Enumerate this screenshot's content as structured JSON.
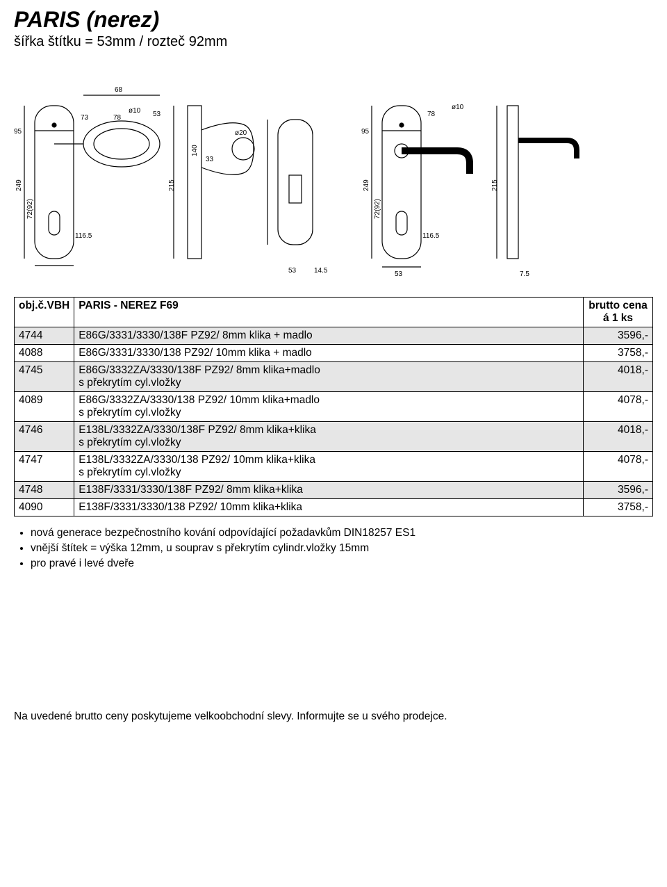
{
  "header": {
    "title": "PARIS (nerez)",
    "subtitle": "šířka štítku = 53mm / rozteč 92mm"
  },
  "diagrams": {
    "left": {
      "dims": [
        "68",
        "95",
        "73",
        "78",
        "ø10",
        "53",
        "249",
        "72(92)",
        "116.5",
        "33",
        "215",
        "140",
        "ø20",
        "53",
        "14.5"
      ]
    },
    "right": {
      "dims": [
        "95",
        "78",
        "ø10",
        "249",
        "72(92)",
        "116.5",
        "215",
        "53",
        "7.5"
      ]
    }
  },
  "table": {
    "header": {
      "col1": "obj.č.VBH",
      "col2": "PARIS  - NEREZ  F69",
      "col3": "brutto cena á 1 ks"
    },
    "rows": [
      {
        "shaded": true,
        "code": "4744",
        "desc": "E86G/3331/3330/138F    PZ92/ 8mm  klika + madlo",
        "price": "3596,-"
      },
      {
        "shaded": false,
        "code": "4088",
        "desc": "E86G/3331/3330/138    PZ92/ 10mm klika + madlo",
        "price": "3758,-"
      },
      {
        "shaded": true,
        "code": "4745",
        "desc": "E86G/3332ZA/3330/138F PZ92/ 8mm klika+madlo\ns překrytím cyl.vložky",
        "price": "4018,-"
      },
      {
        "shaded": false,
        "code": "4089",
        "desc": "E86G/3332ZA/3330/138   PZ92/ 10mm klika+madlo\ns překrytím  cyl.vložky",
        "price": "4078,-"
      },
      {
        "shaded": true,
        "code": "4746",
        "desc": "E138L/3332ZA/3330/138F PZ92/ 8mm klika+klika\ns překrytím   cyl.vložky",
        "price": "4018,-"
      },
      {
        "shaded": false,
        "code": "4747",
        "desc": "E138L/3332ZA/3330/138  PZ92/ 10mm klika+klika\ns překrytím cyl.vložky",
        "price": "4078,-"
      },
      {
        "shaded": true,
        "code": "4748",
        "desc": "E138F/3331/3330/138F   PZ92/ 8mm klika+klika",
        "price": "3596,-"
      },
      {
        "shaded": false,
        "code": "4090",
        "desc": "E138F/3331/3330/138   PZ92/ 10mm klika+klika",
        "price": "3758,-"
      }
    ]
  },
  "bullets": [
    "nová generace bezpečnostního kování odpovídající požadavkům DIN18257 ES1",
    "vnější štítek = výška 12mm, u souprav s překrytím cylindr.vložky 15mm",
    "pro pravé i levé dveře"
  ],
  "footer": "Na uvedené brutto ceny poskytujeme velkoobchodní slevy. Informujte se u svého prodejce."
}
